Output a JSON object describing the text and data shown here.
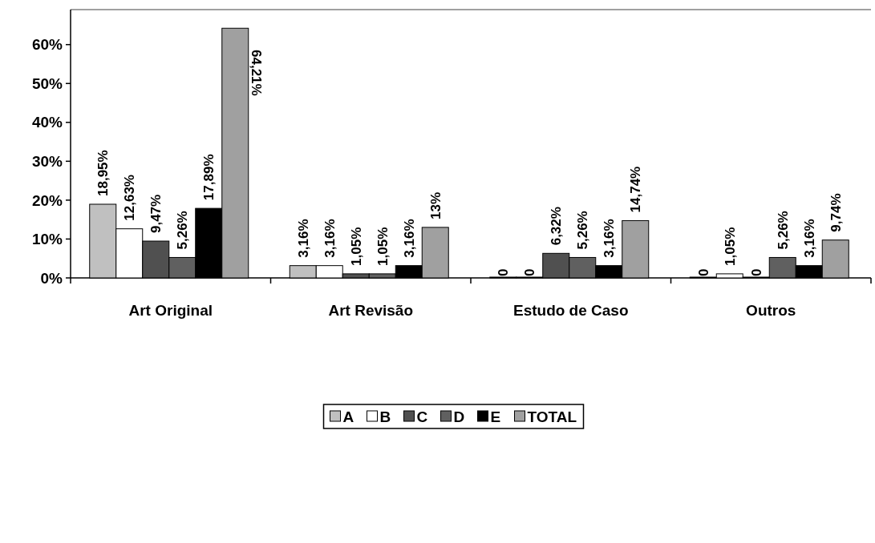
{
  "chart_data": {
    "type": "bar",
    "categories": [
      "Art Original",
      "Art Revisão",
      "Estudo de Caso",
      "Outros"
    ],
    "series": [
      {
        "name": "A",
        "color": "#c0c0c0",
        "values": [
          18.95,
          3.16,
          0,
          0
        ],
        "value_labels": [
          "18,95%",
          "3,16%",
          "0",
          "0"
        ]
      },
      {
        "name": "B",
        "color": "#ffffff",
        "values": [
          12.63,
          3.16,
          0,
          1.05
        ],
        "value_labels": [
          "12,63%",
          "3,16%",
          "0",
          "1,05%"
        ]
      },
      {
        "name": "C",
        "color": "#505050",
        "values": [
          9.47,
          1.05,
          6.32,
          0
        ],
        "value_labels": [
          "9,47%",
          "1,05%",
          "6,32%",
          "0"
        ]
      },
      {
        "name": "D",
        "color": "#606060",
        "values": [
          5.26,
          1.05,
          5.26,
          5.26
        ],
        "value_labels": [
          "5,26%",
          "1,05%",
          "5,26%",
          "5,26%"
        ]
      },
      {
        "name": "E",
        "color": "#000000",
        "values": [
          17.89,
          3.16,
          3.16,
          3.16
        ],
        "value_labels": [
          "17,89%",
          "3,16%",
          "3,16%",
          "3,16%"
        ]
      },
      {
        "name": "TOTAL",
        "color": "#a0a0a0",
        "values": [
          64.21,
          13,
          14.74,
          9.74
        ],
        "value_labels": [
          "64,21%",
          "13%",
          "14,74%",
          "9,74%"
        ]
      }
    ],
    "ylim": [
      0,
      69
    ],
    "yticks": [
      {
        "value": 0,
        "label": "0%"
      },
      {
        "value": 10,
        "label": "10%"
      },
      {
        "value": 20,
        "label": "20%"
      },
      {
        "value": 30,
        "label": "30%"
      },
      {
        "value": 40,
        "label": "40%"
      },
      {
        "value": 50,
        "label": "50%"
      },
      {
        "value": 60,
        "label": "60%"
      }
    ],
    "grid": false,
    "legend": "bottom"
  }
}
